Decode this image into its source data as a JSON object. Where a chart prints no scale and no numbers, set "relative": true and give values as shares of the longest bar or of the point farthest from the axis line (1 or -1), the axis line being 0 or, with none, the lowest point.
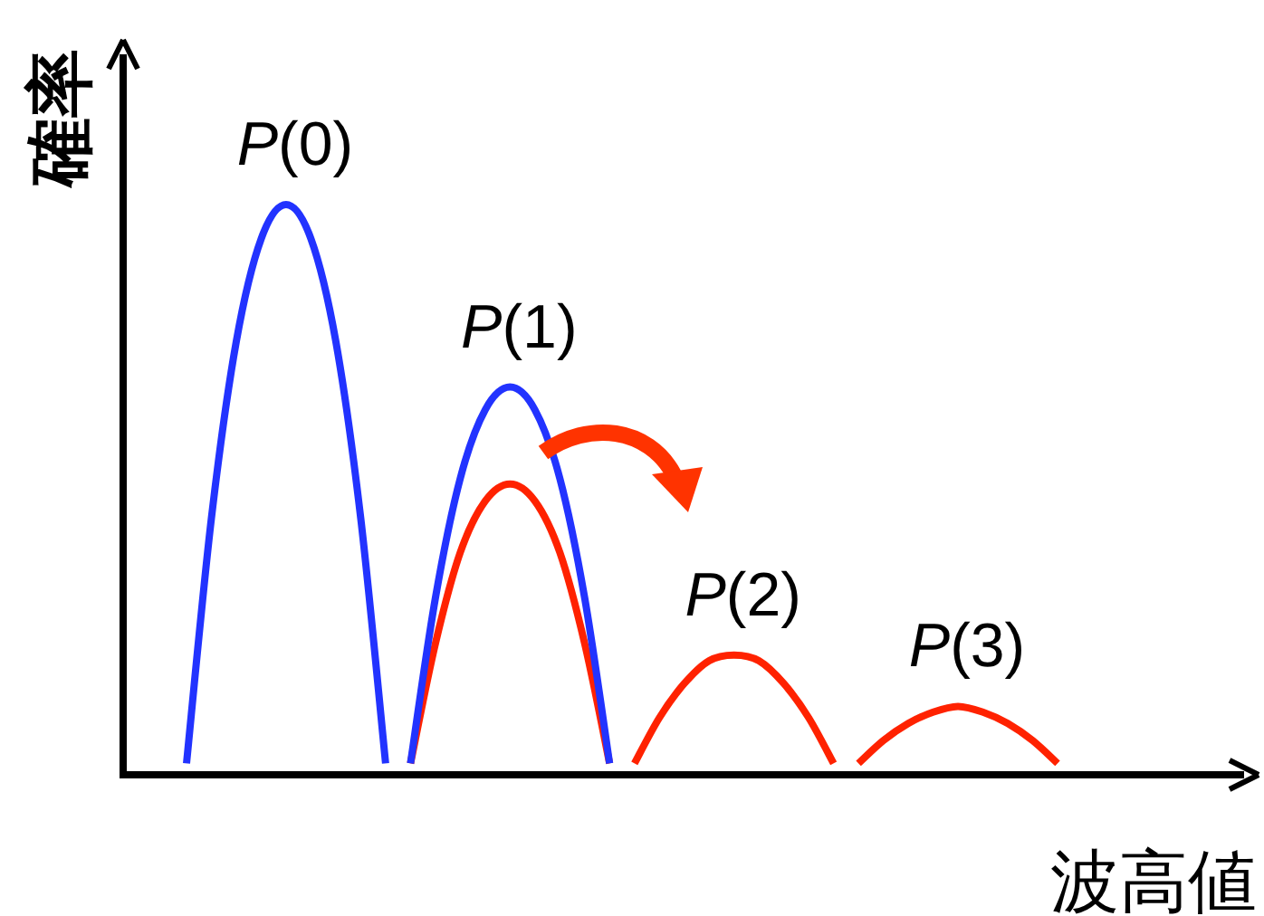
{
  "chart_data": {
    "type": "line",
    "relative": true,
    "xlabel": "波高値",
    "ylabel": "確率",
    "categories": [
      null,
      null,
      null,
      null,
      null,
      null,
      null,
      null,
      null,
      null,
      null,
      null,
      null,
      null,
      null,
      null,
      null,
      null,
      null,
      null,
      null,
      null,
      null,
      null,
      null,
      null,
      null,
      null,
      null,
      null,
      null,
      null,
      null,
      null,
      null,
      null
    ],
    "series": [
      {
        "name": "*P*(0)",
        "color": "#2233ff",
        "values": [
          0.02,
          0.45,
          0.76,
          0.94,
          1,
          0.94,
          0.76,
          0.45,
          0.02,
          null,
          null,
          null,
          null,
          null,
          null,
          null,
          null,
          null,
          null,
          null,
          null,
          null,
          null,
          null,
          null,
          null,
          null,
          null,
          null,
          null,
          null,
          null,
          null,
          null,
          null,
          null
        ]
      },
      {
        "color": "#ff2200",
        "values": [
          null,
          null,
          null,
          null,
          null,
          null,
          null,
          null,
          null,
          0.02,
          0.23,
          0.39,
          0.48,
          0.51,
          0.48,
          0.39,
          0.23,
          0.02,
          null,
          null,
          null,
          null,
          null,
          null,
          null,
          null,
          null,
          null,
          null,
          null,
          null,
          null,
          null,
          null,
          null,
          null
        ]
      },
      {
        "name": "*P*(1)",
        "color": "#2233ff",
        "values": [
          null,
          null,
          null,
          null,
          null,
          null,
          null,
          null,
          null,
          0.02,
          0.31,
          0.52,
          0.64,
          0.68,
          0.64,
          0.52,
          0.31,
          0.02,
          null,
          null,
          null,
          null,
          null,
          null,
          null,
          null,
          null,
          null,
          null,
          null,
          null,
          null,
          null,
          null,
          null,
          null
        ]
      },
      {
        "name": "*P*(2)",
        "color": "#ff2200",
        "values": [
          null,
          null,
          null,
          null,
          null,
          null,
          null,
          null,
          null,
          null,
          null,
          null,
          null,
          null,
          null,
          null,
          null,
          null,
          0.02,
          0.1,
          0.16,
          0.2,
          0.21,
          0.2,
          0.16,
          0.1,
          0.02,
          null,
          null,
          null,
          null,
          null,
          null,
          null,
          null,
          null
        ]
      },
      {
        "name": "*P*(3)",
        "color": "#ff2200",
        "values": [
          null,
          null,
          null,
          null,
          null,
          null,
          null,
          null,
          null,
          null,
          null,
          null,
          null,
          null,
          null,
          null,
          null,
          null,
          null,
          null,
          null,
          null,
          null,
          null,
          null,
          null,
          null,
          0.02,
          0.06,
          0.09,
          0.11,
          0.12,
          0.11,
          0.09,
          0.06,
          0.02
        ]
      }
    ]
  }
}
